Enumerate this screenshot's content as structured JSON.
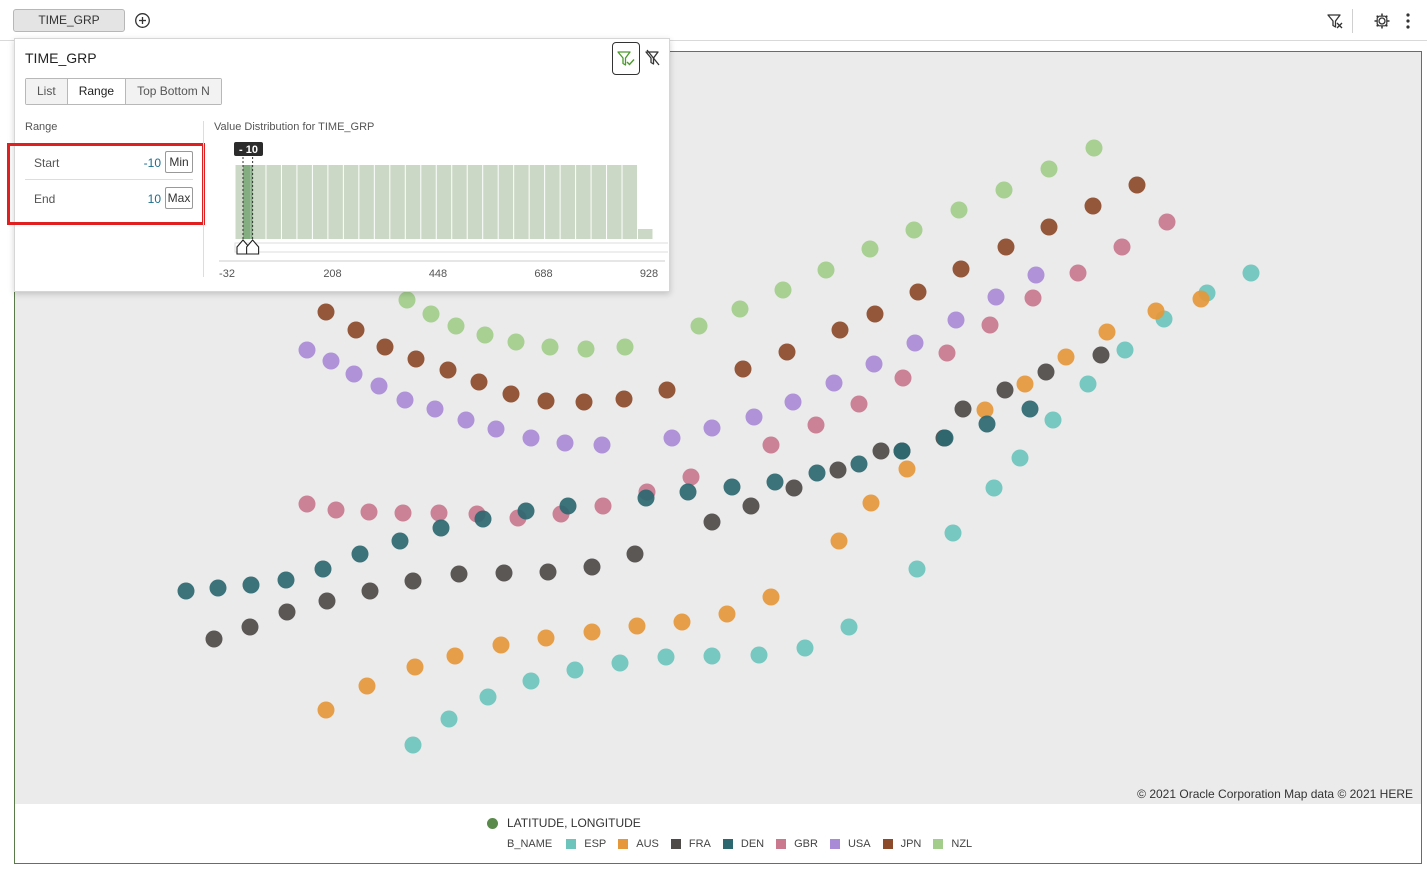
{
  "toolbar": {
    "filter_pill_label": "TIME_GRP",
    "add_filter_icon": "plus-circle-icon",
    "clear_filters_icon": "filter-clear-icon",
    "settings_icon": "gear-icon",
    "more_icon": "more-vertical-icon"
  },
  "filter_popup": {
    "title": "TIME_GRP",
    "apply_icon": "filter-apply-icon",
    "clear_icon": "filter-clear-icon",
    "tabs": [
      {
        "label": "List",
        "active": false
      },
      {
        "label": "Range",
        "active": true
      },
      {
        "label": "Top Bottom N",
        "active": false
      }
    ],
    "range_header": "Range",
    "start": {
      "label": "Start",
      "value": "-10",
      "button": "Min"
    },
    "end": {
      "label": "End",
      "value": "10",
      "button": "Max"
    },
    "distribution_title": "Value Distribution for TIME_GRP",
    "handle_value": "- 10",
    "axis_ticks": [
      "-32",
      "208",
      "448",
      "688",
      "928"
    ],
    "selected_fraction": [
      0.0,
      0.023
    ]
  },
  "map": {
    "copyright": "© 2021 Oracle Corporation   Map data © 2021 HERE"
  },
  "legend": {
    "layer_title": "LATITUDE, LONGITUDE",
    "layer_color": "#5a8a4a",
    "group_label": "B_NAME",
    "items": [
      {
        "label": "ESP",
        "color": "#6dc4bc"
      },
      {
        "label": "AUS",
        "color": "#e6973a"
      },
      {
        "label": "FRA",
        "color": "#4d4a48"
      },
      {
        "label": "DEN",
        "color": "#2d6770"
      },
      {
        "label": "GBR",
        "color": "#c9788e"
      },
      {
        "label": "USA",
        "color": "#a98ad6"
      },
      {
        "label": "JPN",
        "color": "#8c4a2a"
      },
      {
        "label": "NZL",
        "color": "#a2cd8a"
      }
    ]
  }
}
